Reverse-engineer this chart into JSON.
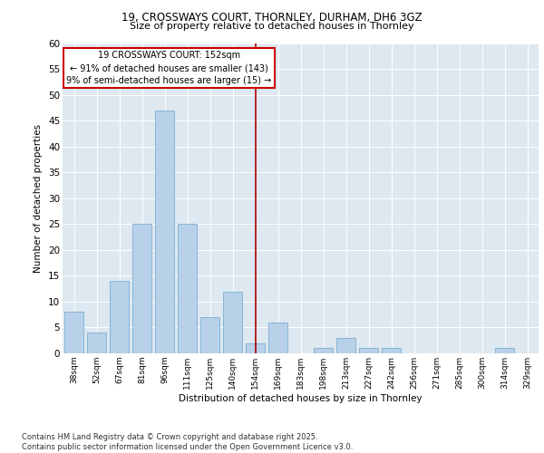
{
  "title1": "19, CROSSWAYS COURT, THORNLEY, DURHAM, DH6 3GZ",
  "title2": "Size of property relative to detached houses in Thornley",
  "xlabel": "Distribution of detached houses by size in Thornley",
  "ylabel": "Number of detached properties",
  "categories": [
    "38sqm",
    "52sqm",
    "67sqm",
    "81sqm",
    "96sqm",
    "111sqm",
    "125sqm",
    "140sqm",
    "154sqm",
    "169sqm",
    "183sqm",
    "198sqm",
    "213sqm",
    "227sqm",
    "242sqm",
    "256sqm",
    "271sqm",
    "285sqm",
    "300sqm",
    "314sqm",
    "329sqm"
  ],
  "values": [
    8,
    4,
    14,
    25,
    47,
    25,
    7,
    12,
    2,
    6,
    0,
    1,
    3,
    1,
    1,
    0,
    0,
    0,
    0,
    1,
    0
  ],
  "bar_color": "#b8d0e8",
  "bar_edge_color": "#7aafd4",
  "vline_index": 8,
  "vline_label": "19 CROSSWAYS COURT: 152sqm",
  "annotation_line2": "← 91% of detached houses are smaller (143)",
  "annotation_line3": "9% of semi-detached houses are larger (15) →",
  "vline_color": "#aa0000",
  "annotation_box_color": "#cc0000",
  "annotation_text_color": "#000000",
  "background_color": "#dde8f0",
  "ylim": [
    0,
    60
  ],
  "yticks": [
    0,
    5,
    10,
    15,
    20,
    25,
    30,
    35,
    40,
    45,
    50,
    55,
    60
  ],
  "footer1": "Contains HM Land Registry data © Crown copyright and database right 2025.",
  "footer2": "Contains public sector information licensed under the Open Government Licence v3.0."
}
